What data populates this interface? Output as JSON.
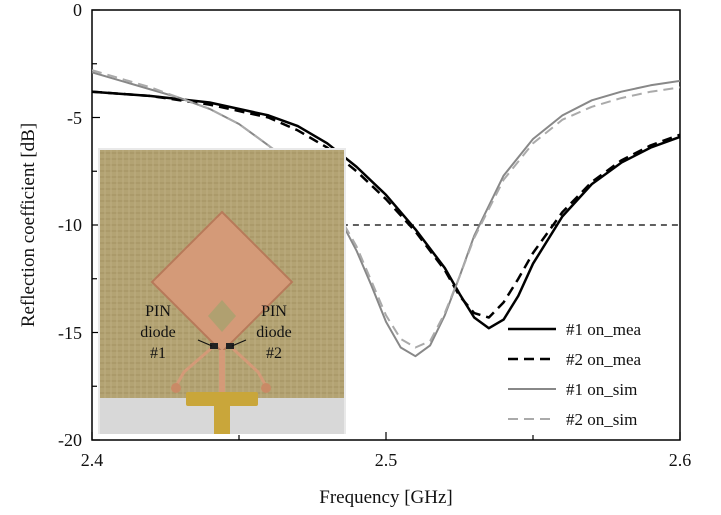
{
  "chart_data": {
    "type": "line",
    "title": "",
    "xlabel": "Frequency [GHz]",
    "ylabel": "Reflection coefficient [dB]",
    "xlim": [
      2.4,
      2.6
    ],
    "ylim": [
      -20,
      0
    ],
    "x_ticks": [
      "2.4",
      "2.5",
      "2.6"
    ],
    "y_ticks": [
      "0",
      "-5",
      "-10",
      "-15",
      "-20"
    ],
    "grid": false,
    "legend_position": "bottom-right",
    "reference_line": {
      "y": -10,
      "style": "dashed",
      "x_range": [
        2.485,
        2.6
      ]
    },
    "series": [
      {
        "name": "#1 on_mea",
        "color": "#000000",
        "dash": "solid",
        "x": [
          2.4,
          2.42,
          2.44,
          2.46,
          2.47,
          2.48,
          2.49,
          2.5,
          2.51,
          2.52,
          2.525,
          2.53,
          2.535,
          2.54,
          2.545,
          2.55,
          2.56,
          2.57,
          2.58,
          2.59,
          2.6
        ],
        "y": [
          -3.8,
          -4.0,
          -4.3,
          -4.9,
          -5.4,
          -6.2,
          -7.3,
          -8.6,
          -10.2,
          -12.0,
          -13.2,
          -14.3,
          -14.8,
          -14.4,
          -13.3,
          -11.8,
          -9.6,
          -8.1,
          -7.1,
          -6.4,
          -5.9
        ]
      },
      {
        "name": "#2 on_mea",
        "color": "#000000",
        "dash": "dashed",
        "x": [
          2.4,
          2.42,
          2.44,
          2.46,
          2.47,
          2.48,
          2.49,
          2.5,
          2.51,
          2.52,
          2.525,
          2.53,
          2.535,
          2.54,
          2.545,
          2.55,
          2.56,
          2.57,
          2.58,
          2.59,
          2.6
        ],
        "y": [
          -3.8,
          -4.0,
          -4.4,
          -5.0,
          -5.6,
          -6.4,
          -7.5,
          -8.8,
          -10.3,
          -12.1,
          -13.3,
          -14.1,
          -14.3,
          -13.6,
          -12.5,
          -11.3,
          -9.4,
          -8.0,
          -7.0,
          -6.3,
          -5.8
        ]
      },
      {
        "name": "#1 on_sim",
        "color": "#888888",
        "dash": "solid",
        "x": [
          2.4,
          2.41,
          2.42,
          2.43,
          2.44,
          2.45,
          2.46,
          2.465,
          2.485,
          2.49,
          2.495,
          2.5,
          2.505,
          2.51,
          2.515,
          2.52,
          2.525,
          2.53,
          2.54,
          2.55,
          2.56,
          2.57,
          2.58,
          2.59,
          2.6
        ],
        "y": [
          -2.9,
          -3.3,
          -3.7,
          -4.1,
          -4.6,
          -5.3,
          -6.3,
          -6.9,
          -9.9,
          -11.2,
          -12.8,
          -14.5,
          -15.7,
          -16.1,
          -15.6,
          -14.2,
          -12.4,
          -10.5,
          -7.7,
          -6.0,
          -4.9,
          -4.2,
          -3.8,
          -3.5,
          -3.3
        ]
      },
      {
        "name": "#2 on_sim",
        "color": "#aaaaaa",
        "dash": "dashed",
        "x": [
          2.4,
          2.41,
          2.42,
          2.43,
          2.44,
          2.45,
          2.46,
          2.465,
          2.485,
          2.49,
          2.495,
          2.5,
          2.505,
          2.51,
          2.515,
          2.52,
          2.525,
          2.53,
          2.54,
          2.55,
          2.56,
          2.57,
          2.58,
          2.59,
          2.6
        ],
        "y": [
          -2.8,
          -3.2,
          -3.6,
          -4.1,
          -4.6,
          -5.3,
          -6.3,
          -6.8,
          -9.8,
          -11.0,
          -12.6,
          -14.2,
          -15.3,
          -15.7,
          -15.4,
          -14.1,
          -12.4,
          -10.6,
          -7.9,
          -6.2,
          -5.1,
          -4.5,
          -4.1,
          -3.8,
          -3.6
        ]
      }
    ],
    "inset": {
      "labels": [
        {
          "text": "PIN"
        },
        {
          "text": "diode"
        },
        {
          "text": "#1"
        },
        {
          "text": "PIN"
        },
        {
          "text": "diode"
        },
        {
          "text": "#2"
        }
      ],
      "colors": {
        "board": "#b0a070",
        "board_dark": "#8f7f52",
        "copper": "#d49a78",
        "copper_edge": "#b77a5a",
        "connector": "#c9a63a",
        "background": "#e9e9e9"
      }
    }
  }
}
